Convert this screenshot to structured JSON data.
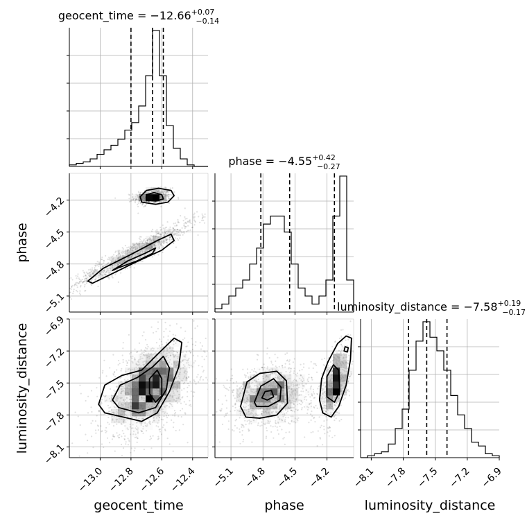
{
  "chart_data": {
    "type": "scatter",
    "subtype": "corner-plot",
    "parameters": [
      "geocent_time",
      "phase",
      "luminosity_distance"
    ],
    "grid": true,
    "marginals": [
      {
        "param": "geocent_time",
        "title": {
          "prefix": "geocent_time = ",
          "value": "−12.66",
          "plus": "+0.07",
          "minus": "−0.14"
        },
        "range": [
          -13.2,
          -12.3
        ],
        "quantiles": [
          -12.8,
          -12.66,
          -12.59
        ],
        "bin_edges": [
          -13.2,
          -13.155,
          -13.11,
          -13.065,
          -13.02,
          -12.975,
          -12.93,
          -12.885,
          -12.84,
          -12.795,
          -12.75,
          -12.705,
          -12.66,
          -12.615,
          -12.57,
          -12.525,
          -12.48,
          -12.435,
          -12.39,
          -12.345,
          -12.3
        ],
        "counts": [
          1,
          2,
          3,
          5,
          8,
          11,
          14,
          18,
          24,
          29,
          40,
          60,
          90,
          60,
          27,
          12,
          5,
          1,
          0,
          0
        ]
      },
      {
        "param": "phase",
        "title": {
          "prefix": "phase = ",
          "value": "−4.55",
          "plus": "+0.42",
          "minus": "−0.27"
        },
        "range": [
          -5.25,
          -3.95
        ],
        "quantiles": [
          -4.82,
          -4.55,
          -4.13
        ],
        "bin_edges": [
          -5.25,
          -5.185,
          -5.12,
          -5.055,
          -4.99,
          -4.925,
          -4.86,
          -4.795,
          -4.73,
          -4.665,
          -4.6,
          -4.535,
          -4.47,
          -4.405,
          -4.34,
          -4.275,
          -4.21,
          -4.145,
          -4.08,
          -4.015,
          -3.95
        ],
        "counts": [
          2,
          5,
          10,
          15,
          20,
          30,
          40,
          55,
          60,
          60,
          50,
          30,
          15,
          10,
          5,
          10,
          20,
          60,
          85,
          20
        ]
      },
      {
        "param": "luminosity_distance",
        "title": {
          "prefix": "luminosity_distance = ",
          "value": "−7.58",
          "plus": "+0.19",
          "minus": "−0.17"
        },
        "range": [
          -8.2,
          -6.9
        ],
        "quantiles": [
          -7.75,
          -7.58,
          -7.39
        ],
        "bin_edges": [
          -8.2,
          -8.135,
          -8.07,
          -8.005,
          -7.94,
          -7.875,
          -7.81,
          -7.745,
          -7.68,
          -7.615,
          -7.55,
          -7.485,
          -7.42,
          -7.355,
          -7.29,
          -7.225,
          -7.16,
          -7.095,
          -7.03,
          -6.965,
          -6.9
        ],
        "counts": [
          0,
          1,
          2,
          3,
          7,
          15,
          25,
          45,
          60,
          70,
          62,
          55,
          45,
          32,
          22,
          15,
          8,
          6,
          2,
          1
        ]
      }
    ],
    "pairs": [
      {
        "x": "geocent_time",
        "y": "phase",
        "xlim": [
          -13.2,
          -12.3
        ],
        "ylim": [
          -5.25,
          -3.95
        ],
        "modes": [
          {
            "center": [
              -12.66,
              -4.17
            ],
            "spread": [
              0.06,
              0.035
            ],
            "weight": 0.3,
            "corr": 0.2
          },
          {
            "center": [
              -12.78,
              -4.7
            ],
            "spread": [
              0.2,
              0.16
            ],
            "weight": 0.7,
            "corr": 0.95
          }
        ],
        "contours": [
          [
            [
              -12.73,
              -4.22
            ],
            [
              -12.74,
              -4.17
            ],
            [
              -12.7,
              -4.11
            ],
            [
              -12.62,
              -4.09
            ],
            [
              -12.54,
              -4.11
            ],
            [
              -12.52,
              -4.16
            ],
            [
              -12.56,
              -4.22
            ],
            [
              -12.64,
              -4.24
            ]
          ],
          [
            [
              -12.7,
              -4.2
            ],
            [
              -12.7,
              -4.15
            ],
            [
              -12.65,
              -4.13
            ],
            [
              -12.6,
              -4.15
            ],
            [
              -12.59,
              -4.19
            ],
            [
              -12.64,
              -4.21
            ]
          ],
          [
            [
              -13.08,
              -4.96
            ],
            [
              -12.98,
              -4.84
            ],
            [
              -12.8,
              -4.71
            ],
            [
              -12.63,
              -4.58
            ],
            [
              -12.54,
              -4.52
            ],
            [
              -12.52,
              -4.58
            ],
            [
              -12.6,
              -4.67
            ],
            [
              -12.78,
              -4.79
            ],
            [
              -12.95,
              -4.91
            ],
            [
              -13.05,
              -4.98
            ]
          ],
          [
            [
              -12.92,
              -4.86
            ],
            [
              -12.82,
              -4.77
            ],
            [
              -12.71,
              -4.7
            ],
            [
              -12.64,
              -4.65
            ],
            [
              -12.66,
              -4.7
            ],
            [
              -12.76,
              -4.77
            ],
            [
              -12.89,
              -4.84
            ]
          ]
        ]
      },
      {
        "x": "geocent_time",
        "y": "luminosity_distance",
        "xlim": [
          -13.2,
          -12.3
        ],
        "ylim": [
          -8.2,
          -6.9
        ],
        "modes": [
          {
            "center": [
              -12.68,
              -7.55
            ],
            "spread": [
              0.15,
              0.22
            ],
            "weight": 1,
            "corr": 0.45
          }
        ],
        "contours": [
          [
            [
              -13.01,
              -7.7
            ],
            [
              -12.97,
              -7.52
            ],
            [
              -12.86,
              -7.43
            ],
            [
              -12.73,
              -7.38
            ],
            [
              -12.62,
              -7.22
            ],
            [
              -12.52,
              -7.08
            ],
            [
              -12.47,
              -7.12
            ],
            [
              -12.49,
              -7.35
            ],
            [
              -12.55,
              -7.58
            ],
            [
              -12.63,
              -7.78
            ],
            [
              -12.73,
              -7.86
            ],
            [
              -12.85,
              -7.82
            ],
            [
              -12.97,
              -7.78
            ]
          ],
          [
            [
              -12.92,
              -7.66
            ],
            [
              -12.87,
              -7.52
            ],
            [
              -12.76,
              -7.45
            ],
            [
              -12.66,
              -7.35
            ],
            [
              -12.59,
              -7.25
            ],
            [
              -12.55,
              -7.36
            ],
            [
              -12.57,
              -7.56
            ],
            [
              -12.64,
              -7.73
            ],
            [
              -12.75,
              -7.78
            ],
            [
              -12.88,
              -7.73
            ]
          ],
          [
            [
              -12.68,
              -7.6
            ],
            [
              -12.68,
              -7.46
            ],
            [
              -12.63,
              -7.38
            ],
            [
              -12.6,
              -7.46
            ],
            [
              -12.6,
              -7.62
            ],
            [
              -12.64,
              -7.68
            ]
          ]
        ]
      },
      {
        "x": "phase",
        "y": "luminosity_distance",
        "xlim": [
          -5.25,
          -3.95
        ],
        "ylim": [
          -8.2,
          -6.9
        ],
        "modes": [
          {
            "center": [
              -4.73,
              -7.62
            ],
            "spread": [
              0.2,
              0.15
            ],
            "weight": 0.65,
            "corr": 0.2
          },
          {
            "center": [
              -4.12,
              -7.5
            ],
            "spread": [
              0.07,
              0.2
            ],
            "weight": 0.35,
            "corr": 0.5
          }
        ],
        "contours": [
          [
            [
              -5.01,
              -7.72
            ],
            [
              -4.95,
              -7.49
            ],
            [
              -4.83,
              -7.41
            ],
            [
              -4.67,
              -7.39
            ],
            [
              -4.58,
              -7.48
            ],
            [
              -4.57,
              -7.69
            ],
            [
              -4.67,
              -7.8
            ],
            [
              -4.83,
              -7.83
            ],
            [
              -4.96,
              -7.82
            ]
          ],
          [
            [
              -4.88,
              -7.68
            ],
            [
              -4.82,
              -7.53
            ],
            [
              -4.7,
              -7.46
            ],
            [
              -4.63,
              -7.54
            ],
            [
              -4.64,
              -7.66
            ],
            [
              -4.75,
              -7.72
            ],
            [
              -4.86,
              -7.72
            ]
          ],
          [
            [
              -4.81,
              -7.64
            ],
            [
              -4.78,
              -7.58
            ],
            [
              -4.72,
              -7.57
            ],
            [
              -4.7,
              -7.63
            ],
            [
              -4.76,
              -7.66
            ]
          ],
          [
            [
              -4.27,
              -7.66
            ],
            [
              -4.25,
              -7.46
            ],
            [
              -4.19,
              -7.3
            ],
            [
              -4.1,
              -7.13
            ],
            [
              -4.02,
              -7.06
            ],
            [
              -3.97,
              -7.08
            ],
            [
              -3.98,
              -7.28
            ],
            [
              -4.02,
              -7.52
            ],
            [
              -4.09,
              -7.72
            ],
            [
              -4.16,
              -7.82
            ],
            [
              -4.24,
              -7.78
            ]
          ],
          [
            [
              -4.2,
              -7.63
            ],
            [
              -4.2,
              -7.44
            ],
            [
              -4.14,
              -7.33
            ],
            [
              -4.09,
              -7.38
            ],
            [
              -4.08,
              -7.58
            ],
            [
              -4.13,
              -7.68
            ]
          ],
          [
            [
              -4.04,
              -7.2
            ],
            [
              -4.03,
              -7.16
            ],
            [
              -4.0,
              -7.17
            ],
            [
              -4.01,
              -7.21
            ]
          ]
        ]
      }
    ],
    "ticks": {
      "geocent_time": {
        "values": [
          -13.0,
          -12.8,
          -12.6,
          -12.4
        ],
        "labels": [
          "−13.0",
          "−12.8",
          "−12.6",
          "−12.4"
        ]
      },
      "phase": {
        "values": [
          -5.1,
          -4.8,
          -4.5,
          -4.2
        ],
        "labels": [
          "−5.1",
          "−4.8",
          "−4.5",
          "−4.2"
        ]
      },
      "luminosity_distance": {
        "values": [
          -8.1,
          -7.8,
          -7.5,
          -7.2,
          -6.9
        ],
        "labels": [
          "−8.1",
          "−7.8",
          "−7.5",
          "−7.2",
          "−6.9"
        ]
      }
    },
    "axis_labels": {
      "geocent_time": "geocent_time",
      "phase": "phase",
      "luminosity_distance": "luminosity_distance"
    }
  }
}
